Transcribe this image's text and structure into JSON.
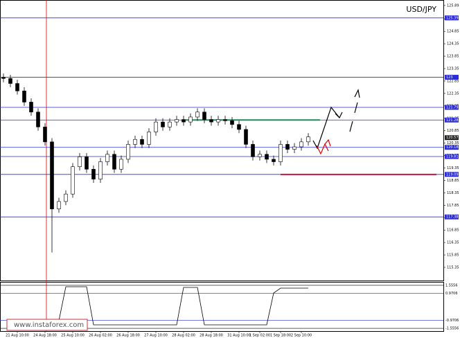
{
  "chart_data": {
    "type": "candlestick",
    "title": "USD/JPY",
    "categories": [
      null,
      null,
      "21 Aug 10:00",
      null,
      null,
      null,
      "24 Aug 18:00",
      null,
      null,
      null,
      "25 Aug 10:00",
      null,
      null,
      null,
      "26 Aug 02:00",
      null,
      null,
      null,
      "26 Aug 18:00",
      null,
      null,
      null,
      "27 Aug 10:00",
      null,
      null,
      null,
      "28 Aug 02:00",
      null,
      null,
      null,
      "28 Aug 18:00",
      null,
      null,
      null,
      "31 Aug 10:00",
      null,
      null,
      "1 Sep 02:00",
      null,
      null,
      "1 Sep 18:00",
      null,
      null,
      "2 Sep 10:00",
      null
    ],
    "open": [
      123.0,
      122.95,
      122.75,
      122.45,
      122.0,
      121.6,
      121.0,
      120.4,
      117.7,
      118.0,
      118.3,
      119.4,
      119.8,
      119.3,
      118.9,
      119.6,
      119.9,
      119.3,
      119.7,
      120.3,
      120.5,
      120.3,
      120.8,
      121.2,
      121.0,
      121.2,
      121.3,
      121.2,
      121.4,
      121.6,
      121.3,
      121.2,
      121.3,
      121.25,
      121.1,
      120.9,
      120.3,
      119.8,
      119.9,
      119.7,
      119.6,
      120.3,
      120.1,
      120.2,
      120.4
    ],
    "high": [
      123.15,
      123.1,
      122.9,
      122.6,
      122.15,
      121.75,
      121.15,
      120.55,
      118.15,
      118.45,
      119.55,
      119.95,
      119.95,
      119.45,
      119.75,
      120.05,
      120.05,
      119.85,
      120.45,
      120.65,
      120.65,
      120.95,
      121.35,
      121.35,
      121.35,
      121.45,
      121.45,
      121.55,
      121.75,
      121.75,
      121.45,
      121.45,
      121.45,
      121.4,
      121.25,
      121.05,
      120.45,
      120.05,
      120.05,
      119.85,
      120.45,
      120.45,
      120.35,
      120.55,
      120.75
    ],
    "low": [
      122.8,
      122.6,
      122.3,
      121.85,
      121.45,
      120.85,
      120.25,
      115.95,
      117.55,
      117.85,
      118.15,
      119.25,
      119.15,
      118.75,
      118.75,
      119.45,
      119.15,
      119.15,
      119.55,
      120.15,
      120.15,
      120.15,
      120.65,
      120.85,
      120.85,
      121.05,
      121.05,
      121.05,
      121.25,
      121.15,
      121.05,
      121.05,
      121.1,
      120.95,
      120.75,
      120.15,
      119.65,
      119.65,
      119.55,
      119.45,
      119.45,
      119.95,
      119.95,
      120.05,
      120.25
    ],
    "close": [
      122.95,
      122.75,
      122.45,
      122.0,
      121.6,
      121.0,
      120.4,
      117.7,
      118.0,
      118.3,
      119.4,
      119.8,
      119.3,
      118.9,
      119.6,
      119.9,
      119.3,
      119.7,
      120.3,
      120.5,
      120.3,
      120.8,
      121.2,
      121.0,
      121.2,
      121.3,
      121.2,
      121.4,
      121.6,
      121.3,
      121.2,
      121.3,
      121.25,
      121.1,
      120.9,
      120.3,
      119.8,
      119.9,
      119.7,
      119.6,
      120.3,
      120.1,
      120.2,
      120.4,
      120.6
    ],
    "color": "#000000",
    "ylim": [
      114.82,
      126.11
    ],
    "yticks": [
      125.89,
      125.35,
      124.85,
      124.35,
      123.85,
      123.35,
      122.85,
      122.35,
      121.85,
      121.35,
      120.85,
      120.35,
      119.85,
      119.35,
      118.85,
      118.35,
      117.85,
      117.35,
      116.85,
      116.35,
      115.85,
      115.35
    ],
    "levels": [
      125.39,
      123.0,
      121.79,
      121.28,
      120.18,
      119.81,
      119.09,
      117.38
    ],
    "level_color": "#2a2ad8",
    "current_price": 120.57,
    "resistance": {
      "value": 121.28,
      "color": "#1e8c5a"
    },
    "support": {
      "value": 119.09,
      "color": "#c8143c"
    },
    "indicator": {
      "values": [
        null,
        null,
        null,
        null,
        null,
        null,
        null,
        null,
        -1.0,
        1.45,
        1.45,
        1.45,
        1.45,
        -1.3,
        -1.3,
        -1.3,
        -1.3,
        -1.3,
        -1.3,
        -1.3,
        -1.3,
        -1.3,
        -1.3,
        -1.3,
        -1.3,
        -1.3,
        1.4,
        1.4,
        1.4,
        -1.3,
        -1.3,
        -1.3,
        -1.3,
        -1.3,
        -1.3,
        -1.3,
        -1.3,
        -1.3,
        -1.3,
        1.0,
        1.35,
        1.35,
        1.35,
        1.35,
        1.35
      ],
      "ylim": [
        -1.75,
        1.75
      ],
      "yticks": [
        1.5556,
        0.9706,
        -0.9706,
        -1.5556
      ],
      "color": "#000000"
    },
    "watermark": "www.instaforex.com"
  }
}
